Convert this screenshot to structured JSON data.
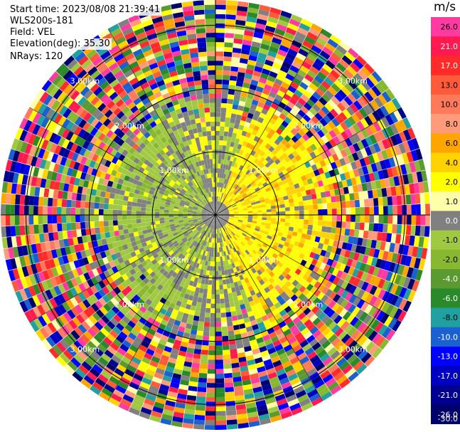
{
  "header": {
    "start_time": "Start time: 2023/08/08 21:39:41",
    "instrument": "WLS200s-181",
    "field": "Field: VEL",
    "elevation": "Elevation(deg): 35.30",
    "nrays": "NRays: 120"
  },
  "colorbar": {
    "unit": "m/s",
    "ticks": [
      "26.0",
      "21.0",
      "17.0",
      "13.0",
      "10.0",
      "8.0",
      "6.0",
      "4.0",
      "2.0",
      "1.0",
      "0.0",
      "-1.0",
      "-2.0",
      "-4.0",
      "-6.0",
      "-8.0",
      "-10.0",
      "-13.0",
      "-17.0",
      "-21.0",
      "-26.0",
      "-30.0"
    ],
    "colors": [
      "#ff3aa0",
      "#ff1a50",
      "#ff2a2a",
      "#ff5a3a",
      "#ff7a5a",
      "#ff9a7a",
      "#ffa500",
      "#ffd200",
      "#ffff00",
      "#ffffaa",
      "#808080",
      "#a0c840",
      "#88b830",
      "#5a9a30",
      "#2a8a2a",
      "#20a0a0",
      "#1a60d0",
      "#0000ff",
      "#0000c0",
      "#000090",
      "#00006a"
    ]
  },
  "chart_data": {
    "type": "ppi",
    "title": "",
    "field": "VEL",
    "units": "m/s",
    "elevation_deg": 35.3,
    "n_rays": 120,
    "range_rings_km": [
      1.0,
      2.0,
      3.0
    ],
    "ring_labels": [
      "1.00km",
      "2.00km",
      "3.00km"
    ],
    "max_range_km": 3.4,
    "colorbar_min": -30.0,
    "colorbar_max": 26.0,
    "pattern": {
      "positive_sector_deg": [
        20,
        160
      ],
      "negative_sector_deg": [
        200,
        340
      ],
      "noise_beyond_km": 2.0
    }
  }
}
